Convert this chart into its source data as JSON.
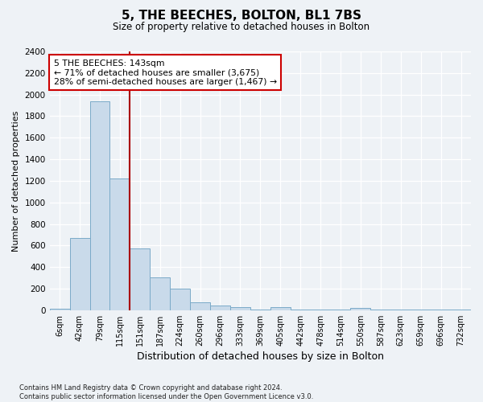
{
  "title1": "5, THE BEECHES, BOLTON, BL1 7BS",
  "title2": "Size of property relative to detached houses in Bolton",
  "xlabel": "Distribution of detached houses by size in Bolton",
  "ylabel": "Number of detached properties",
  "categories": [
    "6sqm",
    "42sqm",
    "79sqm",
    "115sqm",
    "151sqm",
    "187sqm",
    "224sqm",
    "260sqm",
    "296sqm",
    "333sqm",
    "369sqm",
    "405sqm",
    "442sqm",
    "478sqm",
    "514sqm",
    "550sqm",
    "587sqm",
    "623sqm",
    "659sqm",
    "696sqm",
    "732sqm"
  ],
  "values": [
    10,
    670,
    1940,
    1220,
    575,
    305,
    200,
    75,
    40,
    30,
    5,
    25,
    5,
    5,
    5,
    20,
    5,
    5,
    5,
    5,
    5
  ],
  "bar_color": "#c9daea",
  "bar_edge_color": "#7aaac8",
  "vline_x_index": 3.5,
  "vline_color": "#aa0000",
  "annotation_text": "5 THE BEECHES: 143sqm\n← 71% of detached houses are smaller (3,675)\n28% of semi-detached houses are larger (1,467) →",
  "annotation_box_color": "#ffffff",
  "annotation_box_edge": "#cc0000",
  "ylim": [
    0,
    2400
  ],
  "yticks": [
    0,
    200,
    400,
    600,
    800,
    1000,
    1200,
    1400,
    1600,
    1800,
    2000,
    2200,
    2400
  ],
  "footer": "Contains HM Land Registry data © Crown copyright and database right 2024.\nContains public sector information licensed under the Open Government Licence v3.0.",
  "bg_color": "#eef2f6",
  "plot_bg_color": "#eef2f6",
  "grid_color": "#ffffff"
}
